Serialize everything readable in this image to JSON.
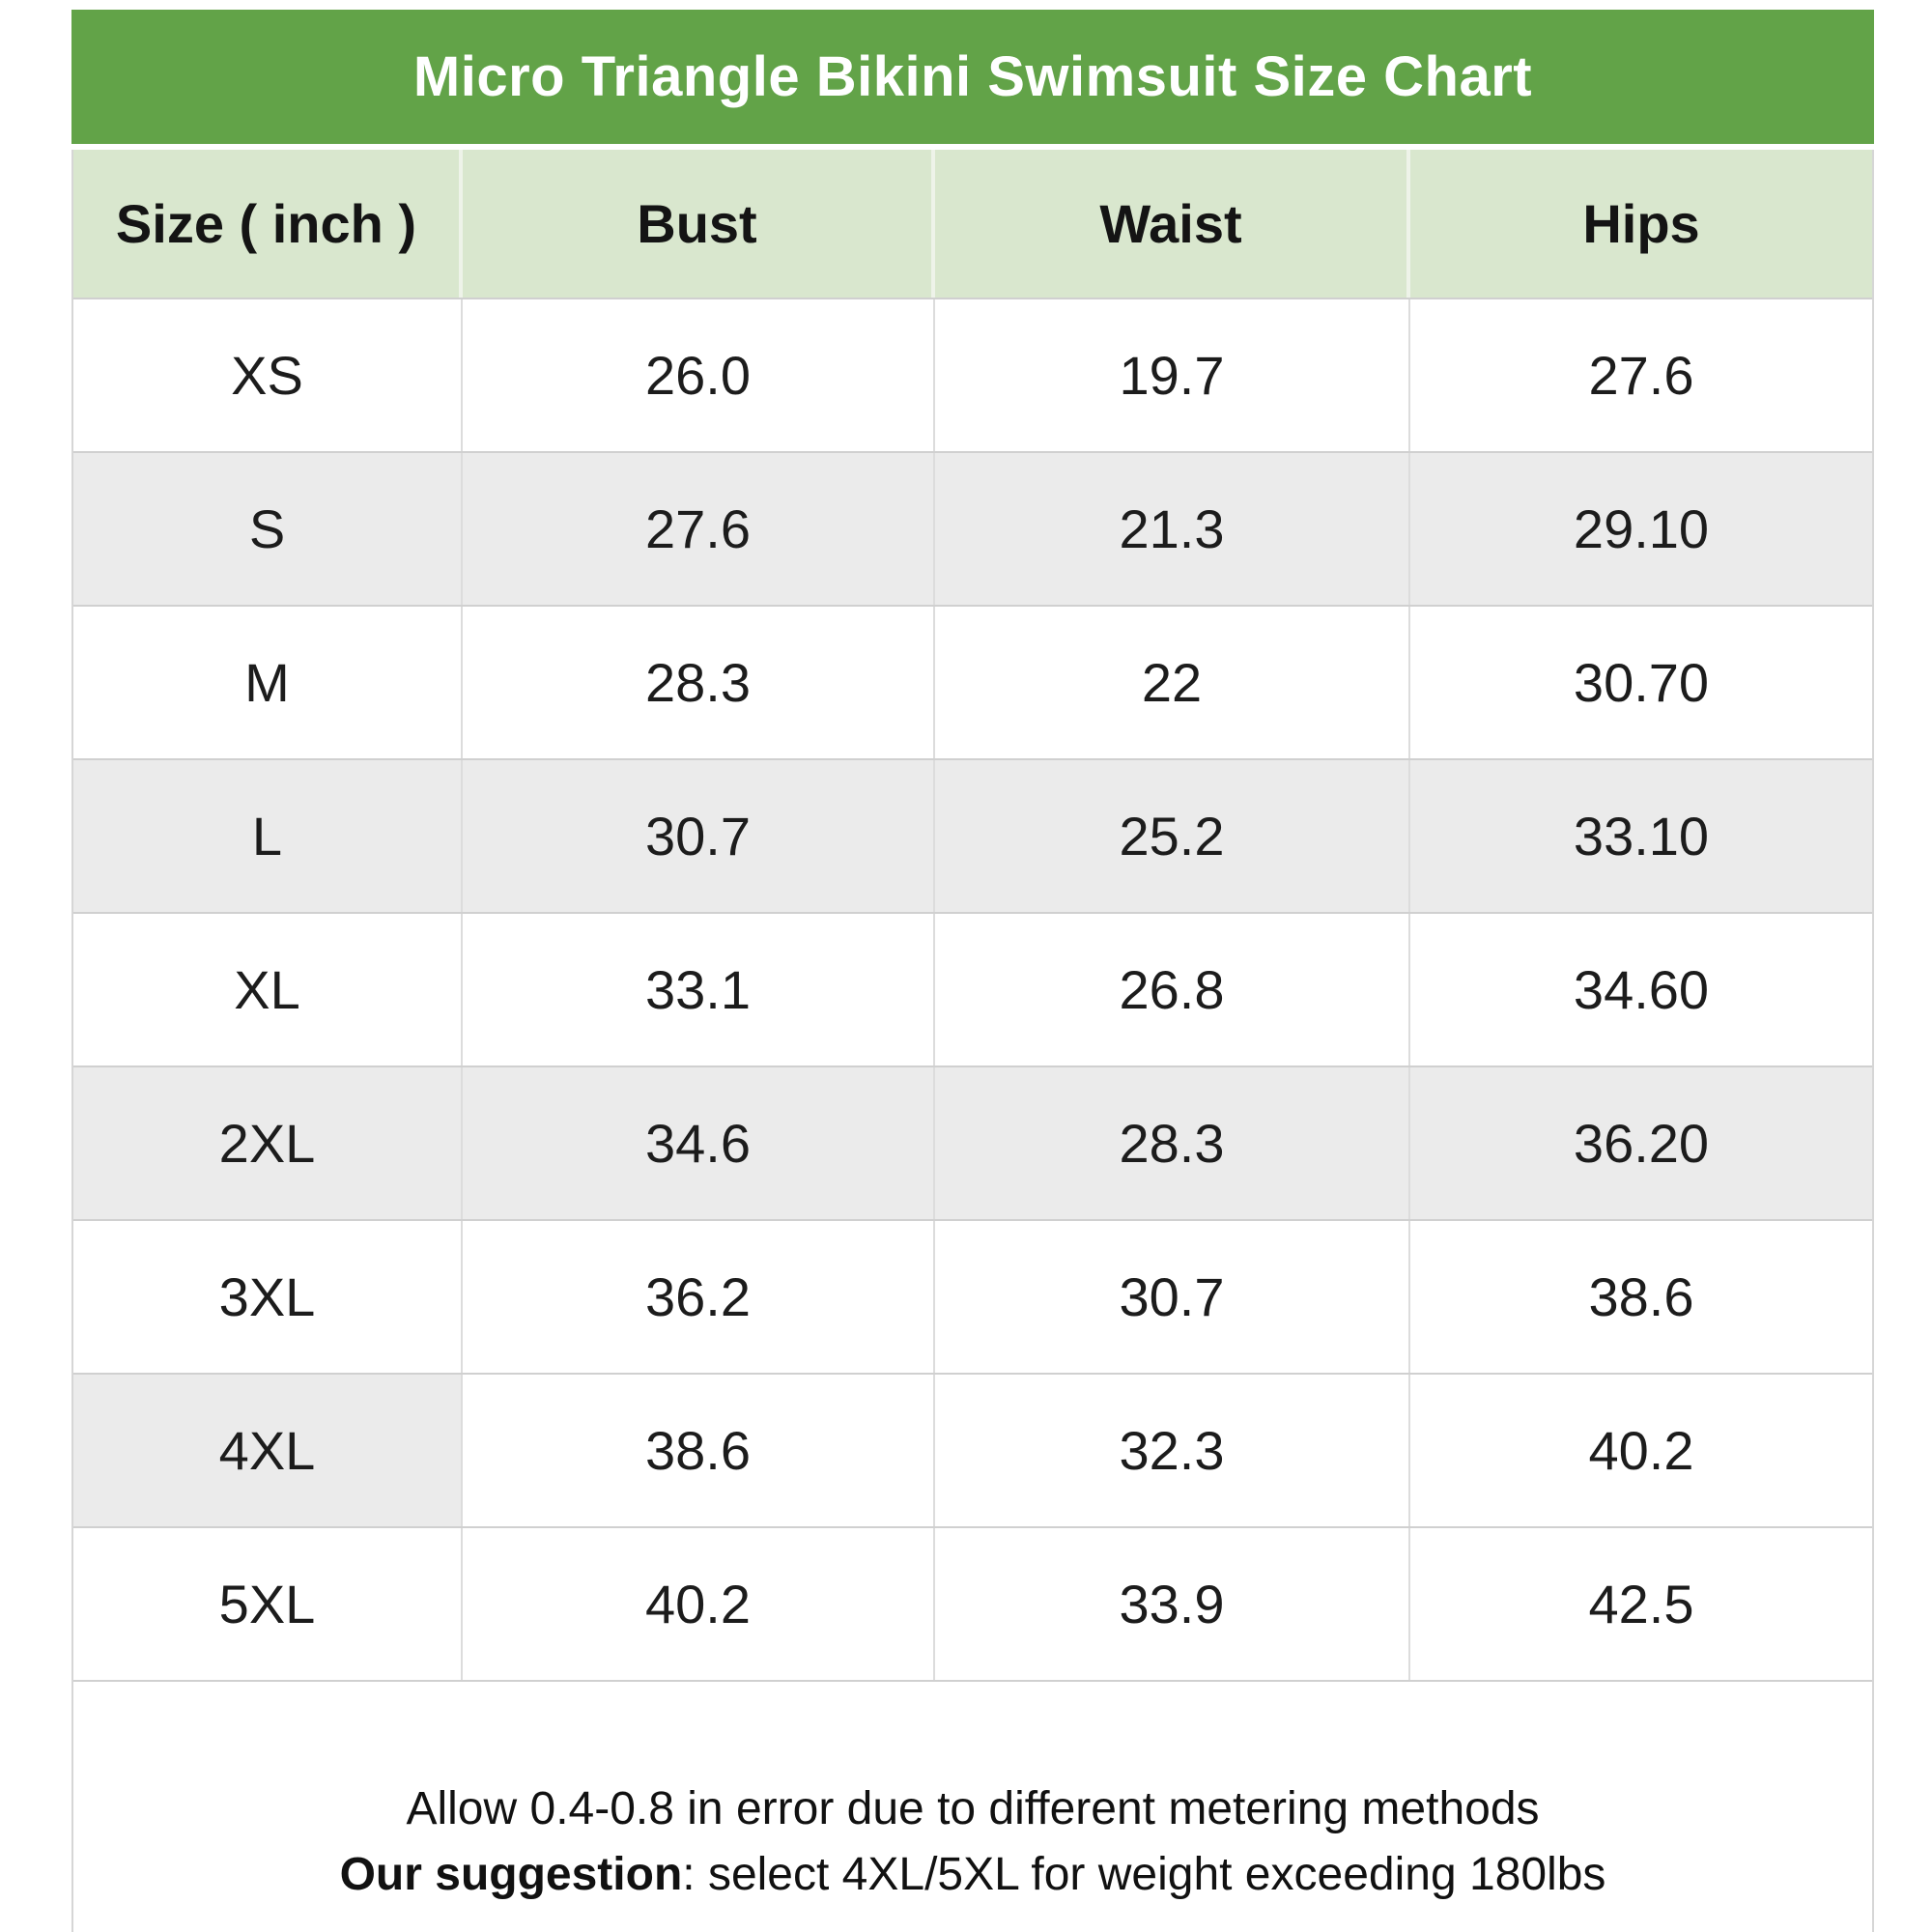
{
  "chart_data": {
    "type": "table",
    "title": "Micro Triangle Bikini Swimsuit Size Chart",
    "unit": "inch",
    "columns": [
      "Size ( inch )",
      "Bust",
      "Waist",
      "Hips"
    ],
    "rows": [
      [
        "XS",
        "26.0",
        "19.7",
        "27.6"
      ],
      [
        "S",
        "27.6",
        "21.3",
        "29.10"
      ],
      [
        "M",
        "28.3",
        "22",
        "30.70"
      ],
      [
        "L",
        "30.7",
        "25.2",
        "33.10"
      ],
      [
        "XL",
        "33.1",
        "26.8",
        "34.60"
      ],
      [
        "2XL",
        "34.6",
        "28.3",
        "36.20"
      ],
      [
        "3XL",
        "36.2",
        "30.7",
        "38.6"
      ],
      [
        "4XL",
        "38.6",
        "32.3",
        "40.2"
      ],
      [
        "5XL",
        "40.2",
        "33.9",
        "42.5"
      ]
    ],
    "notes": [
      "Allow 0.4-0.8 in error due to different metering methods",
      "Our suggestion: select 4XL/5XL for weight exceeding 180lbs"
    ],
    "legend_position": "none",
    "grid": true
  },
  "table": {
    "title": "Micro Triangle Bikini Swimsuit Size Chart",
    "columns": [
      "Size ( inch )",
      "Bust",
      "Waist",
      "Hips"
    ],
    "rows": [
      {
        "size": "XS",
        "bust": "26.0",
        "waist": "19.7",
        "hips": "27.6",
        "shade": "none"
      },
      {
        "size": "S",
        "bust": "27.6",
        "waist": "21.3",
        "hips": "29.10",
        "shade": "full"
      },
      {
        "size": "M",
        "bust": "28.3",
        "waist": "22",
        "hips": "30.70",
        "shade": "none"
      },
      {
        "size": "L",
        "bust": "30.7",
        "waist": "25.2",
        "hips": "33.10",
        "shade": "full"
      },
      {
        "size": "XL",
        "bust": "33.1",
        "waist": "26.8",
        "hips": "34.60",
        "shade": "none"
      },
      {
        "size": "2XL",
        "bust": "34.6",
        "waist": "28.3",
        "hips": "36.20",
        "shade": "full"
      },
      {
        "size": "3XL",
        "bust": "36.2",
        "waist": "30.7",
        "hips": "38.6",
        "shade": "none"
      },
      {
        "size": "4XL",
        "bust": "38.6",
        "waist": "32.3",
        "hips": "40.2",
        "shade": "label"
      },
      {
        "size": "5XL",
        "bust": "40.2",
        "waist": "33.9",
        "hips": "42.5",
        "shade": "none"
      }
    ]
  },
  "footer": {
    "line1": "Allow 0.4-0.8 in error due to different metering methods",
    "line2_bold": "Our suggestion",
    "line2_rest": ": select 4XL/5XL for weight exceeding 180lbs"
  },
  "colors": {
    "title_bar_bg": "#62a348",
    "title_text": "#ffffff",
    "header_bg": "#d9e7ce",
    "row_alt_bg": "#ebebeb",
    "row_bg": "#ffffff",
    "border": "#d0d0d0",
    "text": "#1c1c1c"
  }
}
